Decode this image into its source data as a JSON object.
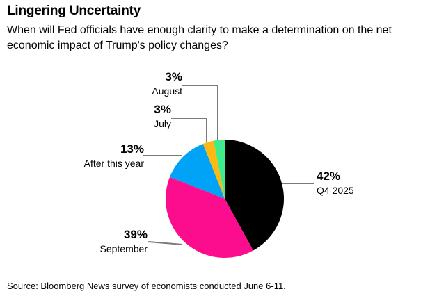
{
  "header": {
    "title": "Lingering Uncertainty",
    "subtitle": "When will Fed officials have enough clarity to make a determination on the net economic impact of Trump's policy changes?"
  },
  "chart_data": {
    "type": "pie",
    "title": "Lingering Uncertainty",
    "question": "When will Fed officials have enough clarity to make a determination on the net economic impact of Trump's policy changes?",
    "start_angle_deg": 0,
    "direction": "clockwise",
    "legend_position": "none-direct-labels-with-leader-lines",
    "slices": [
      {
        "label": "Q4 2025",
        "pct": 42,
        "pct_label": "42%",
        "color": "#000000"
      },
      {
        "label": "September",
        "pct": 39,
        "pct_label": "39%",
        "color": "#fb0d8d"
      },
      {
        "label": "After this year",
        "pct": 13,
        "pct_label": "13%",
        "color": "#00a3f5"
      },
      {
        "label": "July",
        "pct": 3,
        "pct_label": "3%",
        "color": "#fdb813"
      },
      {
        "label": "August",
        "pct": 3,
        "pct_label": "3%",
        "color": "#3eec8b"
      }
    ]
  },
  "colors": {
    "leader_line": "#7a7a7a",
    "background": "#ffffff",
    "text": "#000000"
  },
  "source": "Source: Bloomberg News survey of economists conducted June 6-11."
}
